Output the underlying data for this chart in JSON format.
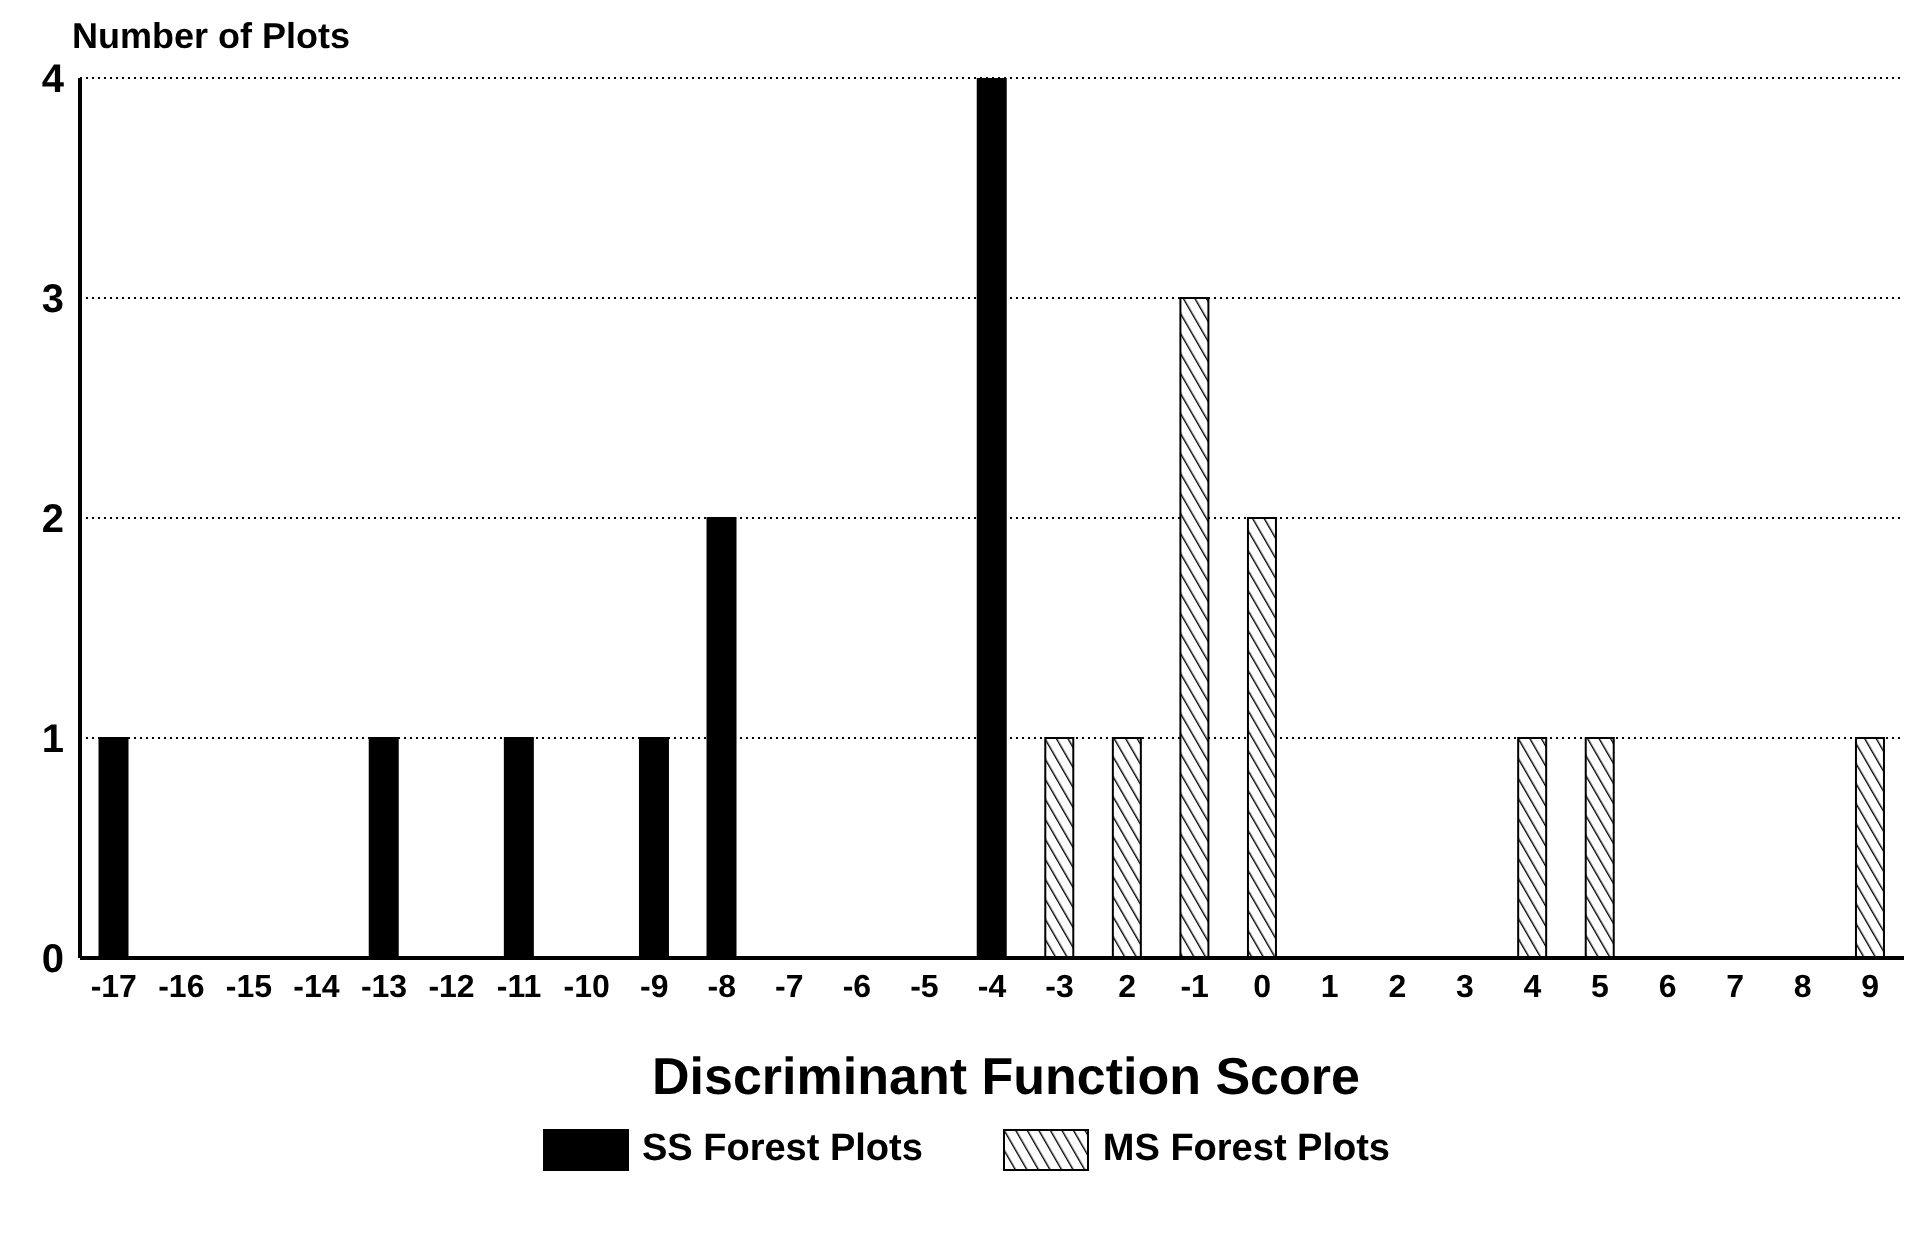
{
  "chart_data": {
    "type": "bar",
    "ylabel": "Number of Plots",
    "xlabel": "Discriminant Function Score",
    "categories": [
      "-17",
      "-16",
      "-15",
      "-14",
      "-13",
      "-12",
      "-11",
      "-10",
      "-9",
      "-8",
      "-7",
      "-6",
      "-5",
      "-4",
      "-3",
      "2",
      "-1",
      "0",
      "1",
      "2",
      "3",
      "4",
      "5",
      "6",
      "7",
      "8",
      "9"
    ],
    "series": [
      {
        "name": "SS Forest Plots",
        "color": "#000000",
        "values": [
          1,
          null,
          null,
          null,
          1,
          null,
          1,
          null,
          1,
          2,
          null,
          null,
          null,
          4,
          null,
          null,
          null,
          null,
          null,
          null,
          null,
          null,
          null,
          null,
          null,
          null,
          null
        ]
      },
      {
        "name": "MS Forest Plots",
        "color": "#000000",
        "values": [
          null,
          null,
          null,
          null,
          null,
          null,
          null,
          null,
          null,
          null,
          null,
          null,
          null,
          null,
          1,
          1,
          3,
          2,
          null,
          null,
          null,
          1,
          1,
          null,
          null,
          null,
          1
        ]
      }
    ],
    "ylim": [
      0,
      4
    ],
    "yticks": [
      0,
      1,
      2,
      3,
      4
    ],
    "grid": "y",
    "legend": "bottom"
  }
}
